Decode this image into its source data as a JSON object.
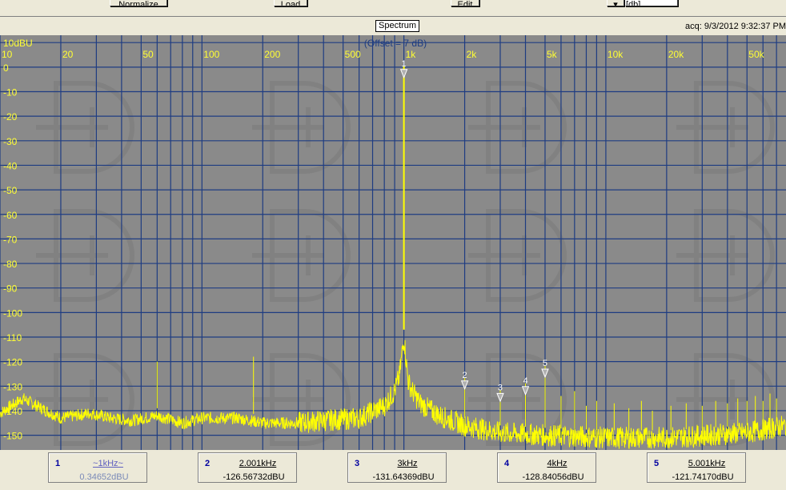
{
  "toolbar": {
    "normalize_label": "Normalize",
    "load_label": "Load",
    "edit_label": "Edit",
    "combo_value": "[db]"
  },
  "header": {
    "title": "Spectrum",
    "acq": "acq: 9/3/2012 9:32:37 PM"
  },
  "colors": {
    "plot_bg": "#8a8a8a",
    "grid": "#1e3c82",
    "trace": "#ffff00",
    "label": "#ffff33",
    "offset_text": "#1e3c82"
  },
  "chart_data": {
    "type": "line",
    "title": "Spectrum",
    "subtitle": "(Offset = 7 dB)",
    "x_scale": "log",
    "xlim": [
      10,
      78000
    ],
    "ylim": [
      -156,
      13
    ],
    "x_tick_labels": [
      {
        "v": 10,
        "t": "10"
      },
      {
        "v": 20,
        "t": "20"
      },
      {
        "v": 50,
        "t": "50"
      },
      {
        "v": 100,
        "t": "100"
      },
      {
        "v": 200,
        "t": "200"
      },
      {
        "v": 500,
        "t": "500"
      },
      {
        "v": 1000,
        "t": "1k"
      },
      {
        "v": 2000,
        "t": "2k"
      },
      {
        "v": 5000,
        "t": "5k"
      },
      {
        "v": 10000,
        "t": "10k"
      },
      {
        "v": 20000,
        "t": "20k"
      },
      {
        "v": 50000,
        "t": "50k"
      }
    ],
    "y_tick_labels": [
      {
        "v": 10,
        "t": "10dBU"
      },
      {
        "v": 0,
        "t": "0"
      },
      {
        "v": -10,
        "t": "-10"
      },
      {
        "v": -20,
        "t": "-20"
      },
      {
        "v": -30,
        "t": "-30"
      },
      {
        "v": -40,
        "t": "-40"
      },
      {
        "v": -50,
        "t": "-50"
      },
      {
        "v": -60,
        "t": "-60"
      },
      {
        "v": -70,
        "t": "-70"
      },
      {
        "v": -80,
        "t": "-80"
      },
      {
        "v": -90,
        "t": "-90"
      },
      {
        "v": -100,
        "t": "-100"
      },
      {
        "v": -110,
        "t": "-110"
      },
      {
        "v": -120,
        "t": "-120"
      },
      {
        "v": -130,
        "t": "-130"
      },
      {
        "v": -140,
        "t": "-140"
      },
      {
        "v": -150,
        "t": "-150"
      }
    ],
    "grid": true,
    "noise_floor": [
      [
        10,
        -141
      ],
      [
        13,
        -135
      ],
      [
        16,
        -139
      ],
      [
        20,
        -143
      ],
      [
        28,
        -141
      ],
      [
        35,
        -143
      ],
      [
        45,
        -144
      ],
      [
        60,
        -142
      ],
      [
        80,
        -145
      ],
      [
        100,
        -143
      ],
      [
        150,
        -143
      ],
      [
        200,
        -145
      ],
      [
        300,
        -145
      ],
      [
        400,
        -144
      ],
      [
        600,
        -143
      ],
      [
        800,
        -138
      ],
      [
        900,
        -132
      ],
      [
        950,
        -126
      ],
      [
        1000,
        -110
      ],
      [
        1050,
        -128
      ],
      [
        1100,
        -132
      ],
      [
        1200,
        -137
      ],
      [
        1500,
        -142
      ],
      [
        2000,
        -146
      ],
      [
        3000,
        -149
      ],
      [
        5000,
        -150
      ],
      [
        10000,
        -151
      ],
      [
        20000,
        -151
      ],
      [
        50000,
        -149
      ],
      [
        78000,
        -146
      ]
    ],
    "peaks": [
      {
        "f": 1000,
        "db": 0.35
      },
      {
        "f": 60,
        "db": -120
      },
      {
        "f": 180,
        "db": -118
      },
      {
        "f": 2001,
        "db": -126.6
      },
      {
        "f": 3000,
        "db": -131.6
      },
      {
        "f": 4000,
        "db": -128.8
      },
      {
        "f": 5001,
        "db": -121.7
      },
      {
        "f": 6000,
        "db": -134
      },
      {
        "f": 7000,
        "db": -132
      },
      {
        "f": 8000,
        "db": -138
      },
      {
        "f": 9000,
        "db": -136
      },
      {
        "f": 11000,
        "db": -137
      },
      {
        "f": 13000,
        "db": -139
      },
      {
        "f": 15000,
        "db": -136
      },
      {
        "f": 17000,
        "db": -140
      },
      {
        "f": 21000,
        "db": -138
      },
      {
        "f": 25000,
        "db": -137
      },
      {
        "f": 30000,
        "db": -138
      },
      {
        "f": 35000,
        "db": -136
      },
      {
        "f": 40000,
        "db": -137
      },
      {
        "f": 45000,
        "db": -135
      },
      {
        "f": 50000,
        "db": -136
      },
      {
        "f": 55000,
        "db": -134
      },
      {
        "f": 60000,
        "db": -136
      },
      {
        "f": 65000,
        "db": -133
      },
      {
        "f": 70000,
        "db": -135
      }
    ],
    "markers": [
      {
        "n": "1",
        "f": 1000,
        "db": 0.35
      },
      {
        "n": "2",
        "f": 2001,
        "db": -126.57
      },
      {
        "n": "3",
        "f": 3000,
        "db": -131.64
      },
      {
        "n": "4",
        "f": 4000,
        "db": -128.84
      },
      {
        "n": "5",
        "f": 5001,
        "db": -121.74
      }
    ]
  },
  "markers": [
    {
      "num": "1",
      "freq": "~1kHz~",
      "value": "0.34652dBU"
    },
    {
      "num": "2",
      "freq": "2.001kHz",
      "value": "-126.56732dBU"
    },
    {
      "num": "3",
      "freq": "3kHz",
      "value": "-131.64369dBU"
    },
    {
      "num": "4",
      "freq": "4kHz",
      "value": "-128.84056dBU"
    },
    {
      "num": "5",
      "freq": "5.001kHz",
      "value": "-121.74170dBU"
    }
  ]
}
